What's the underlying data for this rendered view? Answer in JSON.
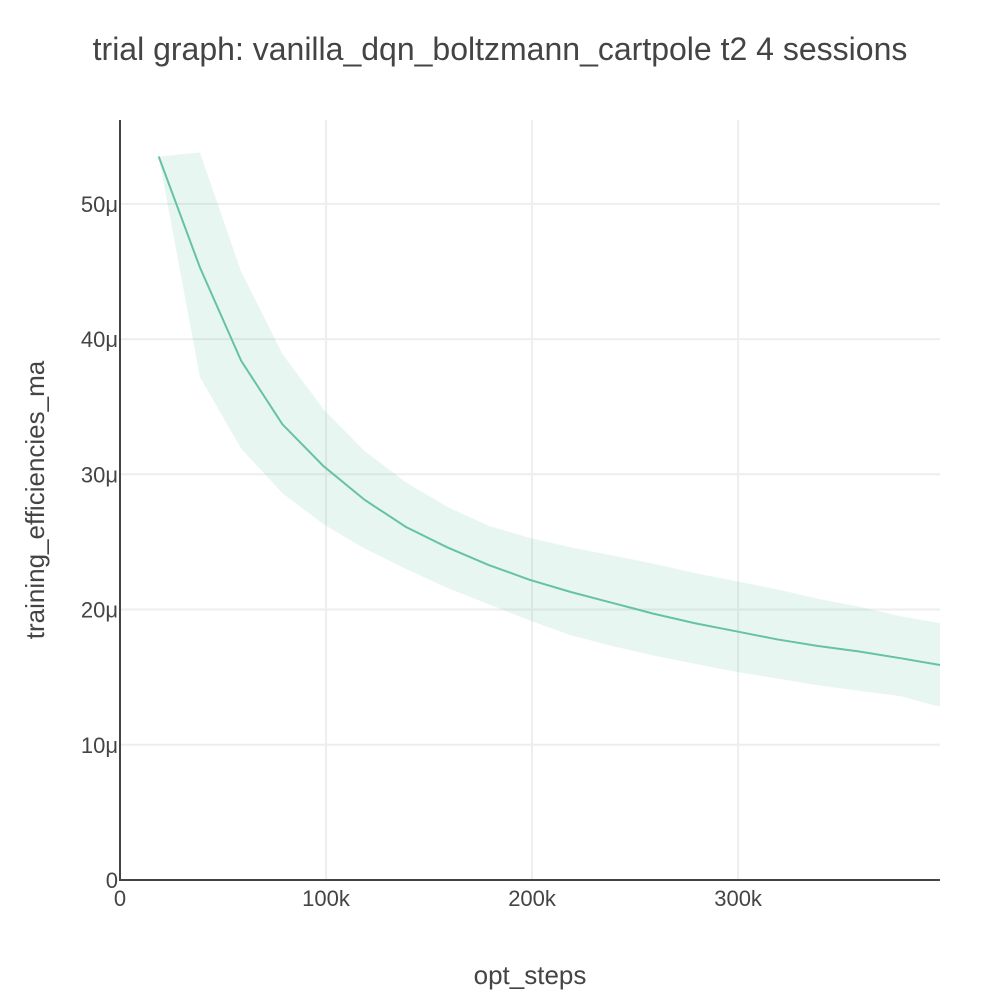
{
  "chart_data": {
    "type": "line",
    "title": "trial graph: vanilla_dqn_boltzmann_cartpole t2 4 sessions",
    "xlabel": "opt_steps",
    "ylabel": "training_efficiencies_ma",
    "xlim": [
      0,
      398000
    ],
    "ylim": [
      0,
      56.2
    ],
    "x_ticks": [
      0,
      100000,
      200000,
      300000
    ],
    "x_tick_labels": [
      "0",
      "100k",
      "200k",
      "300k"
    ],
    "y_ticks": [
      0,
      10,
      20,
      30,
      40,
      50
    ],
    "y_tick_labels": [
      "0",
      "10μ",
      "20μ",
      "30μ",
      "40μ",
      "50μ"
    ],
    "grid": true,
    "line_color": "#66c2a5",
    "band_color": "#66c2a5",
    "series": [
      {
        "x": [
          18800,
          38800,
          58800,
          78800,
          98800,
          118800,
          138800,
          158800,
          178800,
          198800,
          218800,
          238800,
          258800,
          278800,
          298800,
          318800,
          338800,
          358800,
          378800,
          398000
        ],
        "values": [
          53.5,
          45.3,
          38.4,
          33.7,
          30.6,
          28.1,
          26.1,
          24.6,
          23.3,
          22.2,
          21.3,
          20.5,
          19.7,
          19.0,
          18.4,
          17.8,
          17.3,
          16.9,
          16.4,
          15.9
        ],
        "upper": [
          53.5,
          53.8,
          45.0,
          38.9,
          34.8,
          31.7,
          29.4,
          27.6,
          26.2,
          25.3,
          24.6,
          24.0,
          23.4,
          22.7,
          22.1,
          21.5,
          20.8,
          20.2,
          19.5,
          19.0
        ],
        "lower": [
          53.5,
          37.2,
          31.9,
          28.6,
          26.3,
          24.5,
          23.0,
          21.6,
          20.4,
          19.2,
          18.1,
          17.3,
          16.6,
          16.0,
          15.4,
          14.9,
          14.4,
          14.0,
          13.6,
          12.8
        ]
      }
    ]
  }
}
